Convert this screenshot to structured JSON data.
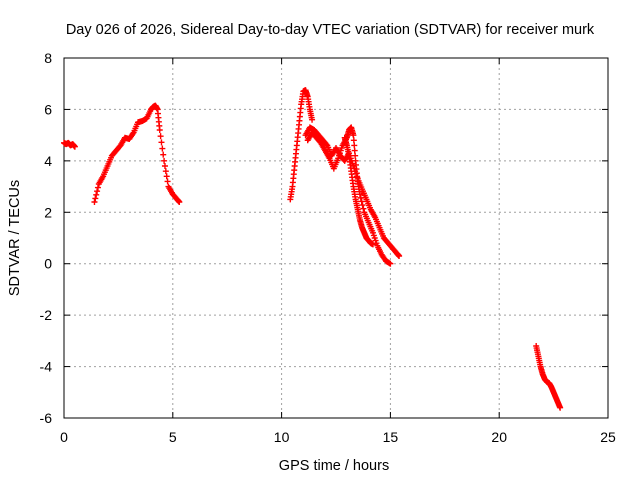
{
  "chart_data": {
    "type": "scatter",
    "title": "Day 026 of 2026, Sidereal Day-to-day VTEC variation (SDTVAR) for receiver murk",
    "xlabel": "GPS time / hours",
    "ylabel": "SDTVAR / TECUs",
    "xlim": [
      0,
      25
    ],
    "ylim": [
      -6,
      8
    ],
    "xticks": [
      0,
      5,
      10,
      15,
      20,
      25
    ],
    "yticks": [
      -6,
      -4,
      -2,
      0,
      2,
      4,
      6,
      8
    ],
    "grid": true,
    "marker": "+",
    "colors": {
      "series": "#ff0000",
      "grid": "#a0a0a0",
      "axis": "#000000"
    },
    "series": [
      {
        "name": "SDTVAR",
        "segments": [
          {
            "x": [
              0.0,
              0.1,
              0.2,
              0.3,
              0.4,
              0.5
            ],
            "y": [
              4.7,
              4.65,
              4.7,
              4.6,
              4.65,
              4.55
            ]
          },
          {
            "x": [
              1.4,
              1.6,
              1.8,
              2.0,
              2.2,
              2.4,
              2.6,
              2.8,
              3.0,
              3.2,
              3.4,
              3.6,
              3.8,
              4.0,
              4.1,
              4.2,
              4.3,
              4.4,
              4.6,
              4.8,
              5.0,
              5.2,
              5.3
            ],
            "y": [
              2.4,
              3.1,
              3.4,
              3.8,
              4.2,
              4.4,
              4.6,
              4.9,
              4.85,
              5.1,
              5.5,
              5.55,
              5.65,
              6.0,
              6.1,
              6.15,
              6.0,
              5.2,
              4.0,
              3.0,
              2.7,
              2.5,
              2.4
            ]
          },
          {
            "x": [
              10.4,
              10.5,
              10.6,
              10.7,
              10.8,
              10.9,
              11.0,
              11.1,
              11.2,
              11.3,
              11.4
            ],
            "y": [
              2.5,
              3.0,
              3.8,
              4.6,
              5.4,
              6.2,
              6.7,
              6.75,
              6.5,
              6.0,
              5.6
            ]
          },
          {
            "x": [
              11.1,
              11.3,
              11.5,
              11.7,
              11.9,
              12.1,
              12.3,
              12.5,
              12.7,
              12.9,
              13.1,
              13.3,
              13.5,
              13.7,
              13.9,
              14.1,
              14.3,
              14.5,
              14.7,
              14.9,
              15.1,
              15.3,
              15.4
            ],
            "y": [
              5.0,
              5.3,
              5.2,
              5.0,
              4.8,
              4.6,
              4.2,
              4.5,
              4.2,
              4.0,
              4.3,
              3.8,
              3.3,
              2.9,
              2.5,
              2.1,
              1.8,
              1.4,
              1.0,
              0.8,
              0.6,
              0.4,
              0.3
            ]
          },
          {
            "x": [
              11.2,
              11.4,
              11.6,
              11.8,
              12.0,
              12.2,
              12.4,
              12.6,
              12.8,
              13.0,
              13.1,
              13.2,
              13.3,
              13.4,
              13.5,
              13.6,
              13.8,
              14.0,
              14.2,
              14.4,
              14.6,
              14.8,
              15.0
            ],
            "y": [
              4.8,
              5.1,
              4.9,
              4.7,
              4.4,
              4.1,
              3.7,
              4.1,
              4.6,
              4.9,
              5.2,
              5.3,
              5.0,
              4.0,
              3.2,
              2.7,
              2.0,
              1.6,
              1.2,
              0.7,
              0.35,
              0.1,
              0.0
            ]
          },
          {
            "x": [
              12.9,
              13.0,
              13.1,
              13.2,
              13.3,
              13.4,
              13.5,
              13.6,
              13.7,
              13.8,
              13.9,
              14.0,
              14.1,
              14.2
            ],
            "y": [
              4.9,
              4.6,
              4.2,
              3.6,
              3.0,
              2.5,
              2.1,
              1.7,
              1.4,
              1.2,
              1.0,
              0.9,
              0.8,
              0.75
            ]
          },
          {
            "x": [
              21.7,
              21.8,
              21.9,
              22.0,
              22.1,
              22.2,
              22.3,
              22.4,
              22.5,
              22.6,
              22.7,
              22.8
            ],
            "y": [
              -3.2,
              -3.6,
              -4.0,
              -4.3,
              -4.5,
              -4.6,
              -4.65,
              -4.8,
              -5.0,
              -5.2,
              -5.4,
              -5.6
            ]
          }
        ]
      }
    ]
  }
}
